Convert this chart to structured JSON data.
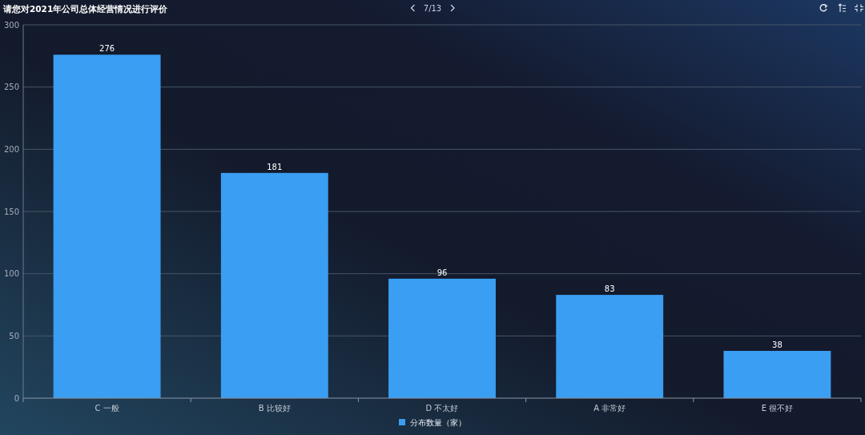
{
  "chart_data": {
    "type": "bar",
    "title": "请您对2021年公司总体经营情况进行评价",
    "categories": [
      "C 一般",
      "B 比较好",
      "D 不太好",
      "A 非常好",
      "E 很不好"
    ],
    "series": [
      {
        "name": "分布数量（家）",
        "color": "#3a9ef2",
        "values": [
          276,
          181,
          96,
          83,
          38
        ]
      }
    ],
    "ylim": [
      0,
      300
    ],
    "yticks": [
      0,
      50,
      100,
      150,
      200,
      250,
      300
    ],
    "grid": "y",
    "legend": "bottom",
    "data_labels": true,
    "annotations": [
      "7/13"
    ]
  }
}
